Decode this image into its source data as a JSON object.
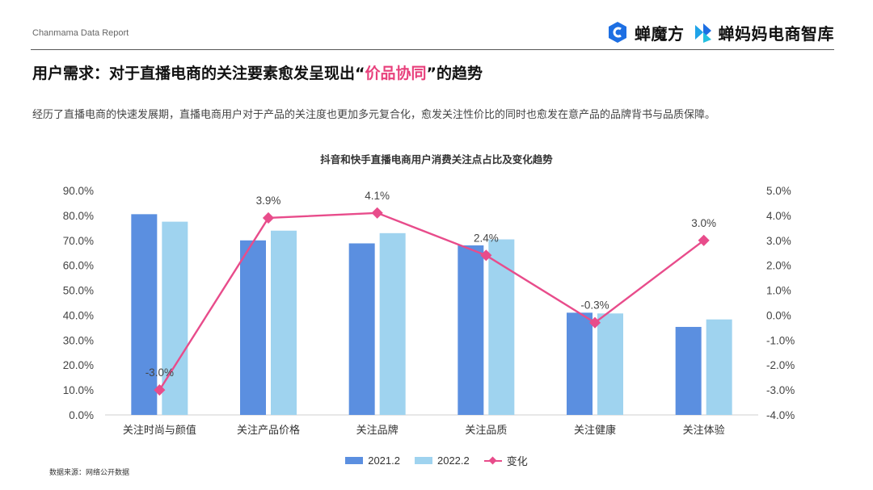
{
  "header": {
    "report_label": "Chanmama Data Report",
    "brand_one": "蝉魔方",
    "brand_two": "蝉妈妈电商智库",
    "colors": {
      "brand_blue": "#1d6fe3",
      "brand_cyan": "#1fa3e8"
    }
  },
  "title": {
    "prefix": "用户需求：对于直播电商的关注要素愈发呈现出",
    "quote_open": "“",
    "highlight": "价品协同",
    "quote_close": "”",
    "suffix": "的趋势",
    "highlight_color": "#e8407c"
  },
  "intro": "经历了直播电商的快速发展期，直播电商用户对于产品的关注度也更加多元复合化，愈发关注性价比的同时也愈发在意产品的品牌背书与品质保障。",
  "source_note": "数据来源：网络公开数据",
  "chart_data": {
    "type": "bar",
    "title": "抖音和快手直播电商用户消费关注点占比及变化趋势",
    "categories": [
      "关注时尚与颜值",
      "关注产品价格",
      "关注品牌",
      "关注品质",
      "关注健康",
      "关注体验"
    ],
    "series": [
      {
        "name": "2021.2",
        "type": "bar",
        "axis": "left",
        "color": "#5b8fe0",
        "values": [
          80.5,
          70.0,
          68.8,
          68.0,
          41.0,
          35.3
        ]
      },
      {
        "name": "2022.2",
        "type": "bar",
        "axis": "left",
        "color": "#9fd3ef",
        "values": [
          77.5,
          73.9,
          72.9,
          70.4,
          40.7,
          38.3
        ]
      },
      {
        "name": "变化",
        "type": "line",
        "axis": "right",
        "color": "#e84c8b",
        "values": [
          -3.0,
          3.9,
          4.1,
          2.4,
          -0.3,
          3.0
        ],
        "labels": [
          "-3.0%",
          "3.9%",
          "4.1%",
          "2.4%",
          "-0.3%",
          "3.0%"
        ]
      }
    ],
    "left_axis": {
      "min": 0,
      "max": 90,
      "ticks": [
        "90.0%",
        "80.0%",
        "70.0%",
        "60.0%",
        "50.0%",
        "40.0%",
        "30.0%",
        "20.0%",
        "10.0%",
        "0.0%"
      ]
    },
    "right_axis": {
      "min": -4,
      "max": 5,
      "ticks": [
        "5.0%",
        "4.0%",
        "3.0%",
        "2.0%",
        "1.0%",
        "0.0%",
        "-1.0%",
        "-2.0%",
        "-3.0%",
        "-4.0%"
      ]
    },
    "legend_position": "bottom",
    "grid": false
  }
}
